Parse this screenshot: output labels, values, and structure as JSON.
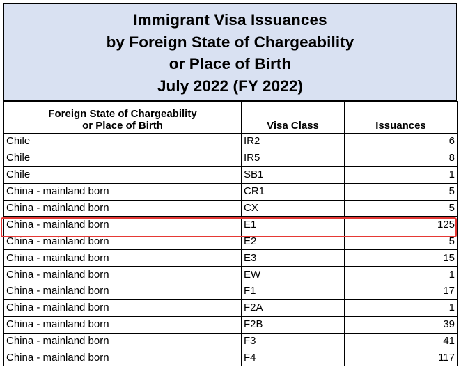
{
  "title_lines": [
    "Immigrant Visa Issuances",
    "by Foreign State of Chargeability",
    "or Place of Birth",
    "July 2022 (FY 2022)"
  ],
  "columns": {
    "state_line1": "Foreign State of Chargeability",
    "state_line2": "or Place of Birth",
    "visa_class": "Visa Class",
    "issuances": "Issuances"
  },
  "rows": [
    {
      "state": "Chile",
      "visa_class": "IR2",
      "issuances": "6"
    },
    {
      "state": "Chile",
      "visa_class": "IR5",
      "issuances": "8"
    },
    {
      "state": "Chile",
      "visa_class": "SB1",
      "issuances": "1"
    },
    {
      "state": "China - mainland born",
      "visa_class": "CR1",
      "issuances": "5"
    },
    {
      "state": "China - mainland born",
      "visa_class": "CX",
      "issuances": "5"
    },
    {
      "state": "China - mainland born",
      "visa_class": "E1",
      "issuances": "125"
    },
    {
      "state": "China - mainland born",
      "visa_class": "E2",
      "issuances": "5"
    },
    {
      "state": "China - mainland born",
      "visa_class": "E3",
      "issuances": "15"
    },
    {
      "state": "China - mainland born",
      "visa_class": "EW",
      "issuances": "1"
    },
    {
      "state": "China - mainland born",
      "visa_class": "F1",
      "issuances": "17"
    },
    {
      "state": "China - mainland born",
      "visa_class": "F2A",
      "issuances": "1"
    },
    {
      "state": "China - mainland born",
      "visa_class": "F2B",
      "issuances": "39"
    },
    {
      "state": "China - mainland born",
      "visa_class": "F3",
      "issuances": "41"
    },
    {
      "state": "China - mainland born",
      "visa_class": "F4",
      "issuances": "117"
    }
  ],
  "highlight_color": "#e53935",
  "title_background": "#d9e1f2"
}
